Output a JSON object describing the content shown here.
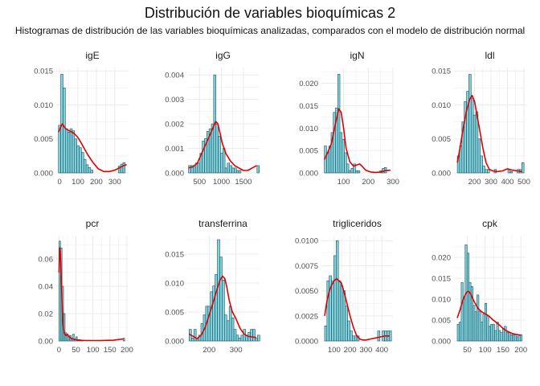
{
  "title": "Distribución de variables bioquímicas 2",
  "subtitle": "Histogramas de distribución de las variables bioquímicas analizadas, comparados con el modelo de distribución normal",
  "colors": {
    "bar_fill": "#7fd3de",
    "bar_stroke": "#1f4f5c",
    "density": "#e00000",
    "grid": "#ebebeb",
    "tick_text": "#4d4d4d"
  },
  "chart_data": [
    {
      "type": "bar",
      "title": "igE",
      "xlim": [
        -18,
        375
      ],
      "ylim": [
        0,
        0.0155
      ],
      "xticks": [
        0,
        100,
        200,
        300
      ],
      "xtick_labels": [
        "0",
        "100",
        "200",
        "300"
      ],
      "yticks": [
        0,
        0.005,
        0.01,
        0.015
      ],
      "ytick_labels": [
        "0.000",
        "0.005",
        "0.010",
        "0.015"
      ],
      "bin_width": 12.5,
      "bins_start": -6,
      "values": [
        0.007,
        0.0145,
        0.0125,
        0.0065,
        0.006,
        0.0065,
        0.0062,
        0.005,
        0.004,
        0.0037,
        0.003,
        0.002,
        0.0012,
        0.0008,
        0.0004,
        0,
        0,
        0,
        0,
        0,
        0,
        0,
        0,
        0,
        0,
        0,
        0.001,
        0.0013,
        0.0015
      ],
      "density_x": [
        -6,
        5,
        15,
        30,
        45,
        60,
        80,
        100,
        120,
        150,
        180,
        210,
        240,
        270,
        300,
        330,
        350,
        365
      ],
      "density_y": [
        0.006,
        0.0067,
        0.0072,
        0.0066,
        0.0063,
        0.0061,
        0.0058,
        0.0052,
        0.0043,
        0.0028,
        0.0016,
        0.0006,
        0.0002,
        0.0002,
        0.0004,
        0.0008,
        0.0011,
        0.0012
      ]
    },
    {
      "type": "bar",
      "title": "igG",
      "xlim": [
        220,
        1850
      ],
      "ylim": [
        0,
        0.0043
      ],
      "xticks": [
        500,
        1000,
        1500
      ],
      "xtick_labels": [
        "500",
        "1000",
        "1500"
      ],
      "yticks": [
        0,
        0.001,
        0.002,
        0.003,
        0.004
      ],
      "ytick_labels": [
        "0.000",
        "0.001",
        "0.002",
        "0.003",
        "0.004"
      ],
      "bin_width": 52,
      "bins_start": 250,
      "values": [
        0.0003,
        0.0003,
        0.0003,
        0.0004,
        0.0004,
        0.0008,
        0.0013,
        0.0014,
        0.0017,
        0.0018,
        0.002,
        0.004,
        0.002,
        0.0015,
        0.0008,
        0.001,
        0.0002,
        0.0004,
        0.0003,
        0.0002,
        0.0002,
        0.0001,
        0.0001,
        0,
        0,
        0,
        0,
        0,
        0,
        0,
        0.0003
      ],
      "density_x": [
        250,
        350,
        450,
        550,
        650,
        750,
        820,
        870,
        920,
        970,
        1020,
        1100,
        1200,
        1300,
        1400,
        1500,
        1600,
        1700,
        1800
      ],
      "density_y": [
        0.0002,
        0.00025,
        0.0004,
        0.0008,
        0.0012,
        0.0016,
        0.0019,
        0.0021,
        0.002,
        0.0016,
        0.0012,
        0.0008,
        0.0005,
        0.0003,
        0.0002,
        0.0001,
        0.0001,
        0.0002,
        0.0003
      ]
    },
    {
      "type": "bar",
      "title": "igN",
      "xlim": [
        10,
        300
      ],
      "ylim": [
        0,
        0.0235
      ],
      "xticks": [
        100,
        200,
        300
      ],
      "xtick_labels": [
        "100",
        "200",
        "300"
      ],
      "yticks": [
        0,
        0.005,
        0.01,
        0.015,
        0.02
      ],
      "ytick_labels": [
        "0.000",
        "0.005",
        "0.010",
        "0.015",
        "0.020"
      ],
      "bin_width": 9,
      "bins_start": 22,
      "values": [
        0.006,
        0.0045,
        0.006,
        0.009,
        0.0135,
        0.0145,
        0.022,
        0.009,
        0.0075,
        0.0045,
        0.002,
        0.0005,
        0.001,
        0.002,
        0.0005,
        0.0005,
        0,
        0,
        0,
        0,
        0,
        0,
        0,
        0,
        0,
        0.0005,
        0.001,
        0.0012
      ],
      "density_x": [
        22,
        35,
        50,
        65,
        80,
        90,
        100,
        110,
        125,
        140,
        155,
        165,
        175,
        190,
        210,
        230,
        250,
        270,
        290
      ],
      "density_y": [
        0.003,
        0.0045,
        0.0065,
        0.0105,
        0.0143,
        0.0135,
        0.01,
        0.0055,
        0.0025,
        0.0015,
        0.0018,
        0.002,
        0.0015,
        0.0006,
        0.0002,
        0.0001,
        0.0002,
        0.0005,
        0.0006
      ]
    },
    {
      "type": "bar",
      "title": "ldl",
      "xlim": [
        75,
        510
      ],
      "ylim": [
        0,
        0.0155
      ],
      "xticks": [
        200,
        300,
        400,
        500
      ],
      "xtick_labels": [
        "200",
        "300",
        "400",
        "500"
      ],
      "yticks": [
        0,
        0.005,
        0.01,
        0.015
      ],
      "ytick_labels": [
        "0.000",
        "0.005",
        "0.010",
        "0.015"
      ],
      "bin_width": 14,
      "bins_start": 95,
      "values": [
        0.0025,
        0.004,
        0.0075,
        0.0105,
        0.012,
        0.0145,
        0.011,
        0.0085,
        0.009,
        0.005,
        0.0025,
        0.001,
        0.0005,
        0.0005,
        0,
        0,
        0.0005,
        0,
        0,
        0,
        0,
        0,
        0.0005,
        0.0002,
        0,
        0,
        0.0005,
        0.0005,
        0.0015
      ],
      "density_x": [
        95,
        110,
        130,
        150,
        170,
        185,
        200,
        215,
        230,
        250,
        270,
        290,
        310,
        340,
        370,
        400,
        430,
        460,
        490
      ],
      "density_y": [
        0.0015,
        0.0035,
        0.0065,
        0.009,
        0.0108,
        0.0114,
        0.0105,
        0.0085,
        0.0065,
        0.0037,
        0.0015,
        0.0005,
        0.0003,
        0.0002,
        0.0003,
        0.0006,
        0.0004,
        0.0003,
        0.0002
      ]
    },
    {
      "type": "bar",
      "title": "pcr",
      "xlim": [
        -8,
        205
      ],
      "ylim": [
        0,
        0.077
      ],
      "xticks": [
        0,
        50,
        100,
        150,
        200
      ],
      "xtick_labels": [
        "0",
        "50",
        "100",
        "150",
        "200"
      ],
      "yticks": [
        0,
        0.02,
        0.04,
        0.06
      ],
      "ytick_labels": [
        "0.00",
        "0.02",
        "0.04",
        "0.06"
      ],
      "bin_width": 4.5,
      "bins_start": 0,
      "values": [
        0.073,
        0.068,
        0.04,
        0.02,
        0.006,
        0.004,
        0.003,
        0.004,
        0.002,
        0.005,
        0.001,
        0.003,
        0.001,
        0.001,
        0.0005,
        0.0005,
        0,
        0,
        0,
        0,
        0,
        0,
        0,
        0,
        0,
        0,
        0,
        0,
        0,
        0,
        0,
        0,
        0,
        0,
        0,
        0,
        0,
        0,
        0,
        0,
        0,
        0,
        0.002
      ],
      "density_x": [
        0,
        2,
        4,
        6,
        8,
        10,
        12,
        15,
        20,
        25,
        30,
        35,
        40,
        50,
        60,
        80,
        120,
        160,
        190
      ],
      "density_y": [
        0.05,
        0.068,
        0.065,
        0.052,
        0.036,
        0.022,
        0.012,
        0.006,
        0.004,
        0.005,
        0.003,
        0.002,
        0.0015,
        0.001,
        0.0005,
        0.0003,
        0.0003,
        0.0005,
        0.0015
      ]
    },
    {
      "type": "bar",
      "title": "transferrina",
      "xlim": [
        118,
        385
      ],
      "ylim": [
        0,
        0.0182
      ],
      "xticks": [
        200,
        300
      ],
      "xtick_labels": [
        "200",
        "300"
      ],
      "yticks": [
        0,
        0.005,
        0.01,
        0.015
      ],
      "ytick_labels": [
        "0.000",
        "0.005",
        "0.010",
        "0.015"
      ],
      "bin_width": 8.8,
      "bins_start": 125,
      "values": [
        0.002,
        0.0005,
        0.002,
        0.0005,
        0.001,
        0.003,
        0.0045,
        0.006,
        0.006,
        0.0085,
        0.0095,
        0.0115,
        0.0175,
        0.0145,
        0.0105,
        0.0045,
        0.0035,
        0.006,
        0.004,
        0.002,
        0.001,
        0.0005,
        0.001,
        0.002,
        0.001,
        0.0015,
        0.002,
        0.002,
        0.0005,
        0.001
      ],
      "density_x": [
        125,
        140,
        155,
        170,
        185,
        200,
        215,
        230,
        240,
        250,
        258,
        265,
        275,
        285,
        300,
        315,
        330,
        345,
        360,
        375
      ],
      "density_y": [
        0.0012,
        0.0008,
        0.0004,
        0.001,
        0.0023,
        0.0045,
        0.0067,
        0.009,
        0.0105,
        0.0112,
        0.0108,
        0.0095,
        0.007,
        0.0052,
        0.0038,
        0.0022,
        0.0012,
        0.0008,
        0.0007,
        0.0006
      ]
    },
    {
      "type": "bar",
      "title": "trigliceridos",
      "xlim": [
        20,
        470
      ],
      "ylim": [
        0,
        0.0105
      ],
      "xticks": [
        100,
        200,
        300,
        400
      ],
      "xtick_labels": [
        "100",
        "200",
        "300",
        "400"
      ],
      "yticks": [
        0,
        0.0025,
        0.005,
        0.0075,
        0.01
      ],
      "ytick_labels": [
        "0.0000",
        "0.0025",
        "0.0050",
        "0.0075",
        "0.0100"
      ],
      "bin_width": 14.5,
      "bins_start": 40,
      "values": [
        0.0015,
        0.006,
        0.0065,
        0.006,
        0.0085,
        0.01,
        0.006,
        0.0055,
        0.005,
        0.0035,
        0.002,
        0.001,
        0.0005,
        0.0005,
        0.0005,
        0,
        0,
        0,
        0,
        0,
        0,
        0,
        0,
        0.001,
        0,
        0.001,
        0.001,
        0.001,
        0.001
      ],
      "density_x": [
        40,
        55,
        70,
        85,
        100,
        115,
        130,
        145,
        160,
        180,
        200,
        220,
        240,
        260,
        280,
        300,
        330,
        360,
        390,
        420,
        450
      ],
      "density_y": [
        0.0025,
        0.004,
        0.005,
        0.0056,
        0.006,
        0.0062,
        0.006,
        0.0058,
        0.005,
        0.0038,
        0.0025,
        0.0014,
        0.0006,
        0.0002,
        0.0001,
        0.0001,
        0.0002,
        0.0003,
        0.0004,
        0.0005,
        0.0005
      ]
    },
    {
      "type": "bar",
      "title": "cpk",
      "xlim": [
        13,
        213
      ],
      "ylim": [
        0,
        0.0252
      ],
      "xticks": [
        50,
        100,
        150,
        200
      ],
      "xtick_labels": [
        "50",
        "100",
        "150",
        "200"
      ],
      "yticks": [
        0,
        0.005,
        0.01,
        0.015,
        0.02
      ],
      "ytick_labels": [
        "0.000",
        "0.005",
        "0.010",
        "0.015",
        "0.020"
      ],
      "bin_width": 5.5,
      "bins_start": 22,
      "values": [
        0.004,
        0.0045,
        0.014,
        0.01,
        0.023,
        0.021,
        0.014,
        0.013,
        0.0085,
        0.007,
        0.011,
        0.007,
        0.0045,
        0.0065,
        0.009,
        0.006,
        0.0035,
        0.004,
        0.004,
        0.0025,
        0.0045,
        0.0025,
        0.002,
        0.003,
        0.0035,
        0.002,
        0.002,
        0.0015,
        0.0015,
        0.0015,
        0.001,
        0.0015,
        0.0015
      ],
      "density_x": [
        22,
        30,
        38,
        45,
        50,
        55,
        60,
        65,
        72,
        80,
        90,
        100,
        110,
        120,
        130,
        140,
        150,
        160,
        170,
        180,
        190,
        200
      ],
      "density_y": [
        0.0055,
        0.0075,
        0.0098,
        0.0112,
        0.0118,
        0.0118,
        0.0112,
        0.0102,
        0.009,
        0.0078,
        0.007,
        0.0065,
        0.006,
        0.0052,
        0.0045,
        0.0038,
        0.003,
        0.0024,
        0.002,
        0.0017,
        0.0015,
        0.0014
      ]
    }
  ]
}
